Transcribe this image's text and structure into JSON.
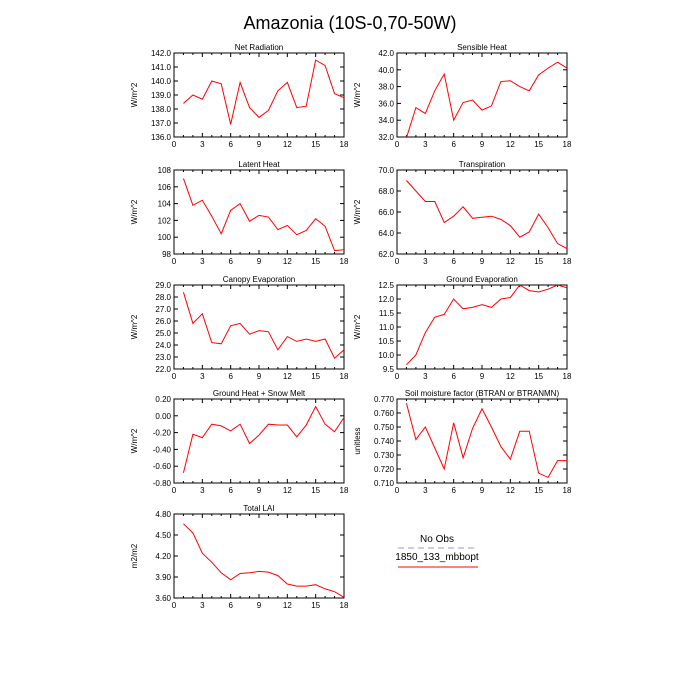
{
  "page": {
    "title": "Amazonia (10S-0,70-50W)"
  },
  "style": {
    "line_color": "#ff0000",
    "obs_color": "#9999cc"
  },
  "legend": {
    "items": [
      {
        "label": "No Obs",
        "style": "dashed",
        "color": "#9999cc"
      },
      {
        "label": "1850_133_mbbopt",
        "style": "solid",
        "color": "#ff0000"
      }
    ]
  },
  "chart_data": [
    {
      "type": "line",
      "title": "Net Radiation",
      "ylabel": "W/m^2",
      "xlim": [
        0,
        18
      ],
      "ylim": [
        136.0,
        142.0
      ],
      "xticks": [
        0,
        3,
        6,
        9,
        12,
        15,
        18
      ],
      "yticks": [
        136.0,
        137.0,
        138.0,
        139.0,
        140.0,
        141.0,
        142.0
      ],
      "ytick_labels": [
        "136.0",
        "137.0",
        "138.0",
        "139.0",
        "140.0",
        "141.0",
        "142.0"
      ],
      "x": [
        1,
        2,
        3,
        4,
        5,
        6,
        7,
        8,
        9,
        10,
        11,
        12,
        13,
        14,
        15,
        16,
        17,
        18
      ],
      "series": [
        {
          "values": [
            138.4,
            139.0,
            138.7,
            140.0,
            139.8,
            136.9,
            139.9,
            138.1,
            137.4,
            137.9,
            139.3,
            139.9,
            138.1,
            138.2,
            141.5,
            141.1,
            139.1,
            138.8
          ]
        }
      ]
    },
    {
      "type": "line",
      "title": "Sensible Heat",
      "ylabel": "W/m^2",
      "xlim": [
        0,
        18
      ],
      "ylim": [
        32.0,
        42.0
      ],
      "xticks": [
        0,
        3,
        6,
        9,
        12,
        15,
        18
      ],
      "yticks": [
        32.0,
        34.0,
        36.0,
        38.0,
        40.0,
        42.0
      ],
      "ytick_labels": [
        "32.0",
        "34.0",
        "36.0",
        "38.0",
        "40.0",
        "42.0"
      ],
      "x": [
        1,
        2,
        3,
        4,
        5,
        6,
        7,
        8,
        9,
        10,
        11,
        12,
        13,
        14,
        15,
        16,
        17,
        18
      ],
      "series": [
        {
          "values": [
            31.9,
            35.5,
            34.8,
            37.5,
            39.5,
            34.0,
            36.1,
            36.4,
            35.2,
            35.7,
            38.6,
            38.7,
            38.0,
            37.5,
            39.4,
            40.2,
            40.9,
            40.2
          ]
        }
      ]
    },
    {
      "type": "line",
      "title": "Latent Heat",
      "ylabel": "W/m^2",
      "xlim": [
        0,
        18
      ],
      "ylim": [
        98,
        108
      ],
      "xticks": [
        0,
        3,
        6,
        9,
        12,
        15,
        18
      ],
      "yticks": [
        98,
        100,
        102,
        104,
        106,
        108
      ],
      "ytick_labels": [
        "98",
        "100",
        "102",
        "104",
        "106",
        "108"
      ],
      "x": [
        1,
        2,
        3,
        4,
        5,
        6,
        7,
        8,
        9,
        10,
        11,
        12,
        13,
        14,
        15,
        16,
        17,
        18
      ],
      "series": [
        {
          "values": [
            107.0,
            103.8,
            104.4,
            102.5,
            100.4,
            103.2,
            104.0,
            101.9,
            102.6,
            102.4,
            100.9,
            101.4,
            100.3,
            100.8,
            102.2,
            101.3,
            98.4,
            98.5
          ]
        }
      ]
    },
    {
      "type": "line",
      "title": "Transpiration",
      "ylabel": "W/m^2",
      "xlim": [
        0,
        18
      ],
      "ylim": [
        62.0,
        70.0
      ],
      "xticks": [
        0,
        3,
        6,
        9,
        12,
        15,
        18
      ],
      "yticks": [
        62.0,
        64.0,
        66.0,
        68.0,
        70.0
      ],
      "ytick_labels": [
        "62.0",
        "64.0",
        "66.0",
        "68.0",
        "70.0"
      ],
      "x": [
        1,
        2,
        3,
        4,
        5,
        6,
        7,
        8,
        9,
        10,
        11,
        12,
        13,
        14,
        15,
        16,
        17,
        18
      ],
      "series": [
        {
          "values": [
            69.0,
            68.0,
            67.0,
            67.0,
            65.0,
            65.6,
            66.5,
            65.4,
            65.5,
            65.6,
            65.3,
            64.7,
            63.6,
            64.1,
            65.8,
            64.5,
            63.0,
            62.5
          ]
        }
      ]
    },
    {
      "type": "line",
      "title": "Canopy Evaporation",
      "ylabel": "W/m^2",
      "xlim": [
        0,
        18
      ],
      "ylim": [
        22.0,
        29.0
      ],
      "xticks": [
        0,
        3,
        6,
        9,
        12,
        15,
        18
      ],
      "yticks": [
        22.0,
        23.0,
        24.0,
        25.0,
        26.0,
        27.0,
        28.0,
        29.0
      ],
      "ytick_labels": [
        "22.0",
        "23.0",
        "24.0",
        "25.0",
        "26.0",
        "27.0",
        "28.0",
        "29.0"
      ],
      "x": [
        1,
        2,
        3,
        4,
        5,
        6,
        7,
        8,
        9,
        10,
        11,
        12,
        13,
        14,
        15,
        16,
        17,
        18
      ],
      "series": [
        {
          "values": [
            28.4,
            25.8,
            26.6,
            24.2,
            24.1,
            25.6,
            25.8,
            24.9,
            25.2,
            25.1,
            23.6,
            24.7,
            24.3,
            24.5,
            24.3,
            24.5,
            22.9,
            23.6
          ]
        }
      ]
    },
    {
      "type": "line",
      "title": "Ground Evaporation",
      "ylabel": "W/m^2",
      "xlim": [
        0,
        18
      ],
      "ylim": [
        9.5,
        12.5
      ],
      "xticks": [
        0,
        3,
        6,
        9,
        12,
        15,
        18
      ],
      "yticks": [
        9.5,
        10.0,
        10.5,
        11.0,
        11.5,
        12.0,
        12.5
      ],
      "ytick_labels": [
        "9.5",
        "10.0",
        "10.5",
        "11.0",
        "11.5",
        "12.0",
        "12.5"
      ],
      "x": [
        1,
        2,
        3,
        4,
        5,
        6,
        7,
        8,
        9,
        10,
        11,
        12,
        13,
        14,
        15,
        16,
        17,
        18
      ],
      "series": [
        {
          "values": [
            9.65,
            10.0,
            10.8,
            11.35,
            11.45,
            12.0,
            11.65,
            11.7,
            11.8,
            11.7,
            12.0,
            12.05,
            12.5,
            12.3,
            12.25,
            12.35,
            12.5,
            12.4
          ]
        }
      ]
    },
    {
      "type": "line",
      "title": "Ground Heat + Snow Melt",
      "ylabel": "W/m^2",
      "xlim": [
        0,
        18
      ],
      "ylim": [
        -0.8,
        0.2
      ],
      "xticks": [
        0,
        3,
        6,
        9,
        12,
        15,
        18
      ],
      "yticks": [
        -0.8,
        -0.6,
        -0.4,
        -0.2,
        0.0,
        0.2
      ],
      "ytick_labels": [
        "-0.80",
        "-0.60",
        "-0.40",
        "-0.20",
        "0.00",
        "0.20"
      ],
      "x": [
        1,
        2,
        3,
        4,
        5,
        6,
        7,
        8,
        9,
        10,
        11,
        12,
        13,
        14,
        15,
        16,
        17,
        18
      ],
      "series": [
        {
          "values": [
            -0.68,
            -0.22,
            -0.26,
            -0.1,
            -0.12,
            -0.18,
            -0.1,
            -0.33,
            -0.23,
            -0.1,
            -0.11,
            -0.11,
            -0.25,
            -0.11,
            0.11,
            -0.1,
            -0.19,
            -0.02
          ]
        }
      ]
    },
    {
      "type": "line",
      "title": "Soil moisture factor (BTRAN or BTRANMN)",
      "ylabel": "unitless",
      "xlim": [
        0,
        18
      ],
      "ylim": [
        0.71,
        0.77
      ],
      "xticks": [
        0,
        3,
        6,
        9,
        12,
        15,
        18
      ],
      "yticks": [
        0.71,
        0.72,
        0.73,
        0.74,
        0.75,
        0.76,
        0.77
      ],
      "ytick_labels": [
        "0.710",
        "0.720",
        "0.730",
        "0.740",
        "0.750",
        "0.760",
        "0.770"
      ],
      "x": [
        1,
        2,
        3,
        4,
        5,
        6,
        7,
        8,
        9,
        10,
        11,
        12,
        13,
        14,
        15,
        16,
        17,
        18
      ],
      "series": [
        {
          "values": [
            0.767,
            0.741,
            0.75,
            0.735,
            0.72,
            0.753,
            0.728,
            0.749,
            0.763,
            0.75,
            0.736,
            0.727,
            0.747,
            0.747,
            0.717,
            0.714,
            0.726,
            0.726
          ]
        }
      ]
    },
    {
      "type": "line",
      "title": "Total LAI",
      "ylabel": "m2/m2",
      "xlim": [
        0,
        18
      ],
      "ylim": [
        3.6,
        4.8
      ],
      "xticks": [
        0,
        3,
        6,
        9,
        12,
        15,
        18
      ],
      "yticks": [
        3.6,
        3.9,
        4.2,
        4.5,
        4.8
      ],
      "ytick_labels": [
        "3.60",
        "3.90",
        "4.20",
        "4.50",
        "4.80"
      ],
      "x": [
        1,
        2,
        3,
        4,
        5,
        6,
        7,
        8,
        9,
        10,
        11,
        12,
        13,
        14,
        15,
        16,
        17,
        18
      ],
      "series": [
        {
          "values": [
            4.66,
            4.53,
            4.24,
            4.11,
            3.96,
            3.86,
            3.95,
            3.96,
            3.98,
            3.97,
            3.92,
            3.8,
            3.77,
            3.77,
            3.79,
            3.73,
            3.69,
            3.61
          ]
        }
      ]
    }
  ]
}
